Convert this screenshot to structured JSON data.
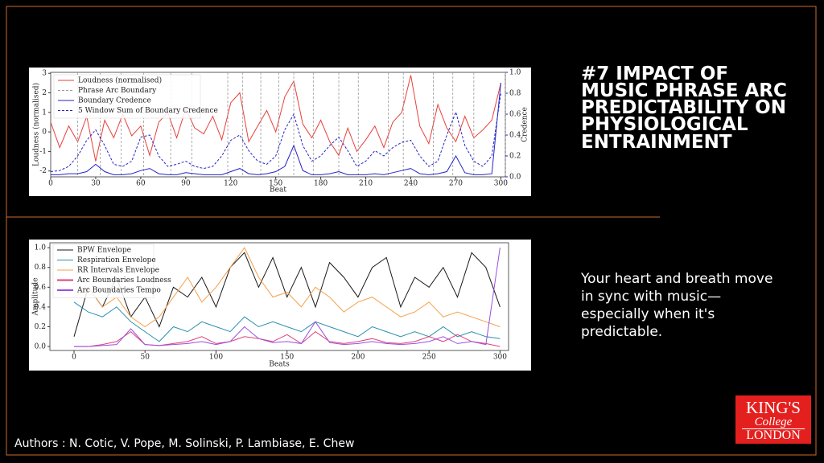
{
  "slide": {
    "title": "#7 IMPACT OF MUSIC PHRASE ARC PREDICTABILITY ON PHYSIOLOGICAL ENTRAINMENT",
    "body": "Your heart and breath move in sync with music—especially when it's predictable.",
    "authors": "Authors : N. Cotic, V. Pope, M. Solinski, P. Lambiase, E. Chew",
    "logo": [
      "KING'S",
      "College",
      "LONDON"
    ]
  },
  "chart_data": [
    {
      "type": "line",
      "xlabel": "Beat",
      "ylabel": "Loudness (normalised)",
      "y2label": "Credence",
      "x": [
        0,
        6,
        12,
        18,
        24,
        30,
        36,
        42,
        48,
        54,
        60,
        66,
        72,
        78,
        84,
        90,
        96,
        102,
        108,
        114,
        120,
        126,
        132,
        138,
        144,
        150,
        156,
        162,
        168,
        174,
        180,
        186,
        192,
        198,
        204,
        210,
        216,
        222,
        228,
        234,
        240,
        246,
        252,
        258,
        264,
        270,
        276,
        282,
        288,
        294,
        300
      ],
      "xlim": [
        0,
        303
      ],
      "xticks": [
        0,
        30,
        60,
        90,
        120,
        150,
        180,
        210,
        240,
        270,
        300
      ],
      "ylim": [
        -2.3,
        3.05
      ],
      "yticks": [
        -2,
        -1,
        0,
        1,
        2,
        3
      ],
      "y2lim": [
        0,
        1.0
      ],
      "y2ticks": [
        {
          "value": 0,
          "label": "0.0"
        },
        0.2,
        0.4,
        0.6,
        0.8,
        {
          "value": 1,
          "label": "1.0"
        }
      ],
      "grid": false,
      "legend": "upper left",
      "series": [
        {
          "name": "Loudness (normalised)",
          "color": "#e8403a",
          "linestyle": "solid",
          "values": [
            0.5,
            -0.8,
            0.3,
            -0.5,
            0.8,
            -1.5,
            0.6,
            -0.3,
            0.9,
            -0.2,
            0.3,
            -1.2,
            0.5,
            1.0,
            -0.3,
            1.2,
            0.2,
            -0.1,
            0.8,
            -0.4,
            1.5,
            2.0,
            -0.5,
            0.3,
            1.1,
            0.0,
            1.8,
            2.6,
            0.4,
            -0.3,
            0.6,
            -0.5,
            -1.2,
            0.2,
            -1.0,
            -0.4,
            0.3,
            -0.8,
            0.5,
            1.0,
            2.9,
            0.3,
            -0.6,
            1.4,
            0.2,
            -0.5,
            0.8,
            -0.3,
            0.1,
            0.6,
            2.5
          ]
        },
        {
          "name": "Phrase Arc Boundary",
          "color": "#999999",
          "linestyle": "dashed",
          "kind": "vline",
          "x": [
            18,
            33,
            47,
            62,
            80,
            94,
            118,
            128,
            140,
            152,
            162,
            175,
            192,
            205,
            225,
            235,
            255,
            268,
            282,
            303
          ]
        },
        {
          "name": "Boundary Credence",
          "color": "#2424c8",
          "linestyle": "solid",
          "axis": "y2",
          "values": [
            0.02,
            0.02,
            0.03,
            0.03,
            0.05,
            0.12,
            0.05,
            0.02,
            0.02,
            0.03,
            0.06,
            0.08,
            0.03,
            0.02,
            0.02,
            0.04,
            0.03,
            0.02,
            0.02,
            0.02,
            0.05,
            0.08,
            0.03,
            0.02,
            0.03,
            0.05,
            0.1,
            0.3,
            0.06,
            0.02,
            0.02,
            0.03,
            0.05,
            0.02,
            0.02,
            0.02,
            0.03,
            0.02,
            0.04,
            0.06,
            0.08,
            0.03,
            0.02,
            0.03,
            0.05,
            0.2,
            0.04,
            0.02,
            0.02,
            0.03,
            0.9
          ]
        },
        {
          "name": "5 Window Sum of Boundary Credence",
          "color": "#2424c8",
          "linestyle": "dashed",
          "axis": "y2",
          "values": [
            0.05,
            0.06,
            0.1,
            0.2,
            0.35,
            0.45,
            0.3,
            0.12,
            0.1,
            0.15,
            0.38,
            0.4,
            0.2,
            0.1,
            0.12,
            0.15,
            0.1,
            0.08,
            0.1,
            0.2,
            0.35,
            0.4,
            0.25,
            0.15,
            0.12,
            0.2,
            0.45,
            0.6,
            0.3,
            0.15,
            0.2,
            0.3,
            0.38,
            0.25,
            0.1,
            0.15,
            0.25,
            0.2,
            0.28,
            0.33,
            0.35,
            0.2,
            0.1,
            0.15,
            0.4,
            0.62,
            0.3,
            0.15,
            0.1,
            0.2,
            0.8
          ]
        }
      ]
    },
    {
      "type": "line",
      "xlabel": "Beats",
      "ylabel": "Amplitude",
      "x": [
        0,
        10,
        20,
        30,
        40,
        50,
        60,
        70,
        80,
        90,
        100,
        110,
        120,
        130,
        140,
        150,
        160,
        170,
        180,
        190,
        200,
        210,
        220,
        230,
        240,
        250,
        260,
        270,
        280,
        290,
        300
      ],
      "xlim": [
        -17,
        306
      ],
      "xticks": [
        0,
        50,
        100,
        150,
        200,
        250,
        300
      ],
      "ylim": [
        -0.04,
        1.05
      ],
      "yticks": [
        {
          "value": 0,
          "label": "0.0"
        },
        0.2,
        0.4,
        0.6,
        0.8,
        {
          "value": 1,
          "label": "1.0"
        }
      ],
      "grid": false,
      "legend": "upper left",
      "series": [
        {
          "name": "BPW Envelope",
          "color": "#1a1a1a",
          "linestyle": "solid",
          "values": [
            0.1,
            0.6,
            0.4,
            0.7,
            0.3,
            0.5,
            0.2,
            0.6,
            0.5,
            0.7,
            0.4,
            0.8,
            0.95,
            0.6,
            0.9,
            0.5,
            0.8,
            0.4,
            0.85,
            0.7,
            0.5,
            0.8,
            0.9,
            0.4,
            0.7,
            0.6,
            0.8,
            0.5,
            0.95,
            0.8,
            0.4
          ]
        },
        {
          "name": "Respiration Envelope",
          "color": "#2a8fb0",
          "linestyle": "solid",
          "values": [
            0.45,
            0.35,
            0.3,
            0.4,
            0.25,
            0.15,
            0.05,
            0.2,
            0.15,
            0.25,
            0.2,
            0.15,
            0.3,
            0.2,
            0.25,
            0.2,
            0.15,
            0.25,
            0.2,
            0.15,
            0.1,
            0.2,
            0.15,
            0.1,
            0.15,
            0.1,
            0.2,
            0.1,
            0.15,
            0.1,
            0.08
          ]
        },
        {
          "name": "RR Intervals Envelope",
          "color": "#f5a04a",
          "linestyle": "solid",
          "values": [
            0.5,
            0.6,
            0.4,
            0.5,
            0.3,
            0.2,
            0.3,
            0.5,
            0.7,
            0.45,
            0.6,
            0.8,
            1.0,
            0.7,
            0.5,
            0.55,
            0.4,
            0.6,
            0.5,
            0.35,
            0.45,
            0.5,
            0.4,
            0.3,
            0.35,
            0.45,
            0.3,
            0.35,
            0.3,
            0.25,
            0.2
          ]
        },
        {
          "name": "Arc Boundaries Loudness",
          "color": "#e0407a",
          "linestyle": "solid",
          "values": [
            0,
            0,
            0.02,
            0.05,
            0.15,
            0.02,
            0.01,
            0.03,
            0.05,
            0.1,
            0.03,
            0.05,
            0.1,
            0.08,
            0.05,
            0.12,
            0.03,
            0.15,
            0.05,
            0.03,
            0.05,
            0.08,
            0.04,
            0.03,
            0.05,
            0.1,
            0.05,
            0.12,
            0.05,
            0.03,
            0.0
          ]
        },
        {
          "name": "Arc Boundaries Tempo",
          "color": "#9a4ee0",
          "linestyle": "solid",
          "values": [
            0,
            0,
            0.01,
            0.02,
            0.18,
            0.02,
            0.01,
            0.02,
            0.03,
            0.05,
            0.02,
            0.05,
            0.2,
            0.08,
            0.04,
            0.05,
            0.03,
            0.25,
            0.04,
            0.02,
            0.03,
            0.05,
            0.03,
            0.02,
            0.03,
            0.05,
            0.1,
            0.03,
            0.05,
            0.02,
            1.0
          ]
        }
      ]
    }
  ]
}
